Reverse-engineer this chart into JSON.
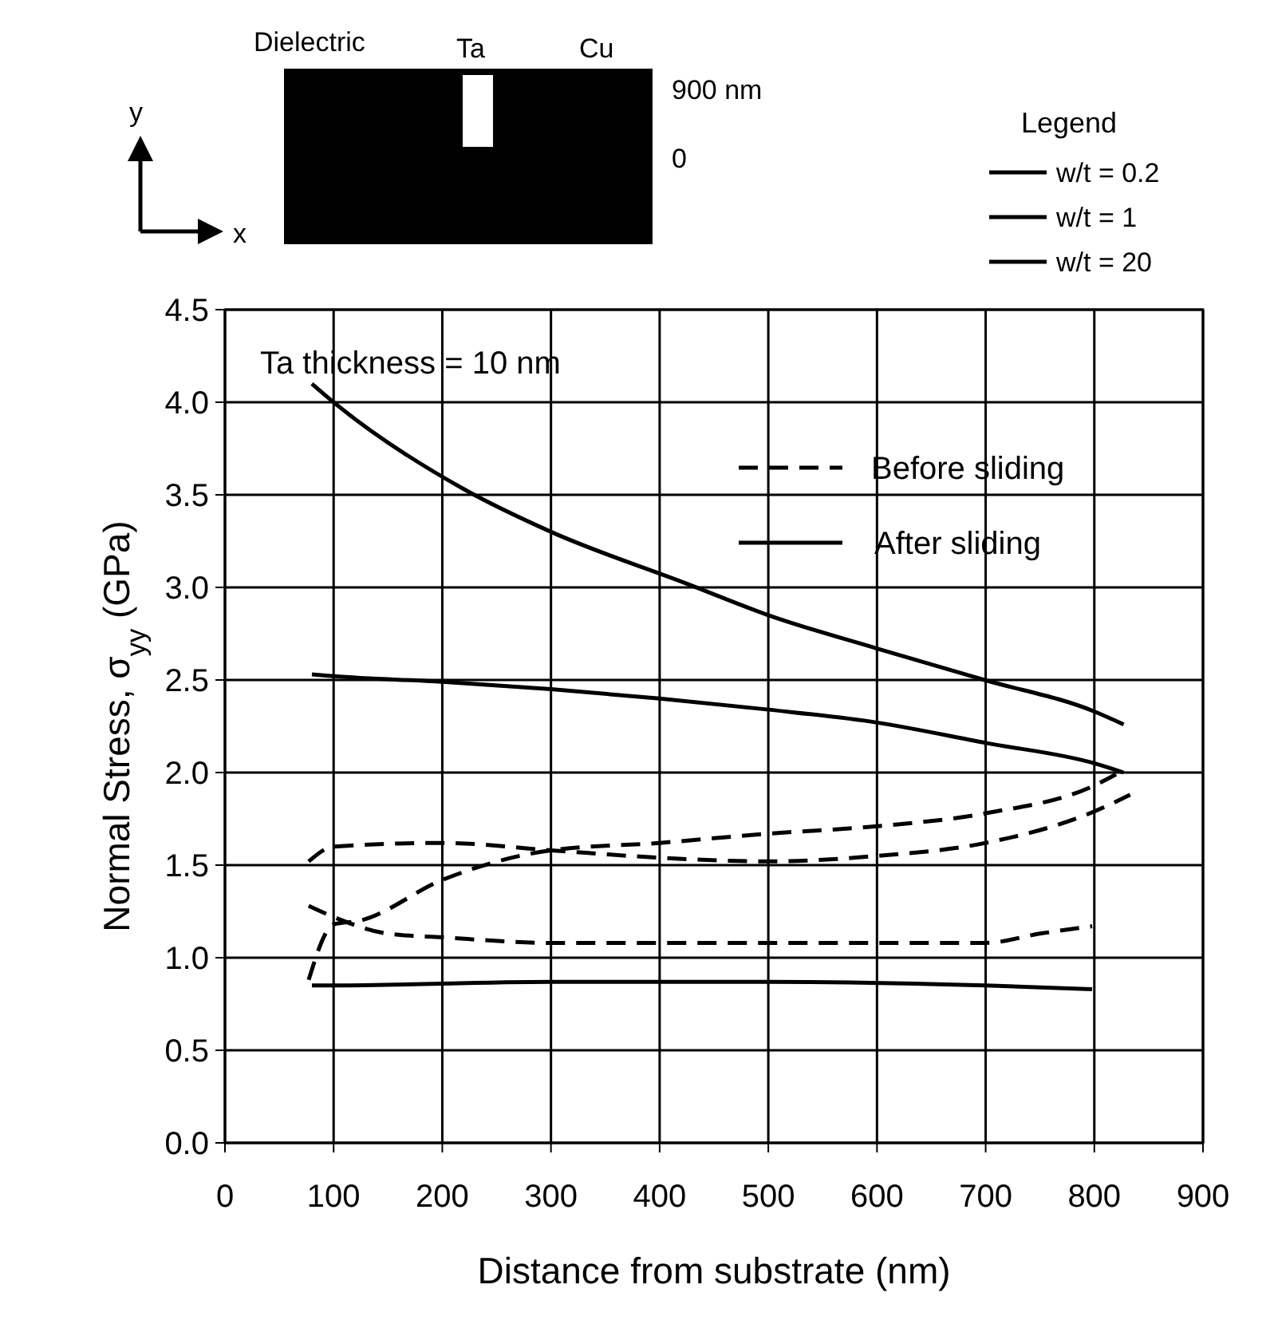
{
  "chart_data": {
    "type": "line",
    "xlabel": "Distance from substrate (nm)",
    "ylabel": "Normal Stress, σ$_{yy}$ (GPa)",
    "legend_title": "Legend",
    "legend": "top right",
    "grid": true,
    "xlim": [
      0,
      900
    ],
    "xticks": [
      0,
      100,
      200,
      300,
      400,
      500,
      600,
      700,
      800,
      900
    ],
    "ylim": [
      0,
      4.5
    ],
    "yticks": [
      {
        "value": 0,
        "label": "0.0"
      },
      {
        "value": 0.5,
        "label": "0.5"
      },
      {
        "value": 1,
        "label": "1.0"
      },
      {
        "value": 1.5,
        "label": "1.5"
      },
      {
        "value": 2,
        "label": "2.0"
      },
      {
        "value": 2.5,
        "label": "2.5"
      },
      {
        "value": 3,
        "label": "3.0"
      },
      {
        "value": 3.5,
        "label": "3.5"
      },
      {
        "value": 4,
        "label": "4.0"
      },
      {
        "value": 4.5,
        "label": "4.5"
      }
    ],
    "annotations": [
      "Ta thickness = 10 nm",
      "Before sliding",
      "After sliding",
      "Dielectric",
      "Ta",
      "Cu",
      "900 nm",
      "0",
      "y",
      "x"
    ],
    "series": [
      {
        "name": "w/t = 0.2",
        "color": "#000000",
        "line_style": "solid",
        "x": [
          80,
          100,
          220,
          300,
          425,
          500,
          600,
          699,
          800,
          827
        ],
        "values": [
          4.1,
          4.0,
          3.53,
          3.3,
          3.02,
          2.85,
          2.67,
          2.5,
          2.33,
          2.26
        ]
      },
      {
        "name": "w/t = 1",
        "color": "#000000",
        "line_style": "solid",
        "x": [
          80,
          100,
          200,
          300,
          400,
          500,
          600,
          700,
          800,
          827
        ],
        "values": [
          2.53,
          2.52,
          2.49,
          2.45,
          2.4,
          2.34,
          2.27,
          2.16,
          2.05,
          2.0
        ]
      },
      {
        "name": "w/t = 20",
        "color": "#000000",
        "line_style": "solid",
        "x": [
          80,
          100,
          300,
          500,
          700,
          798
        ],
        "values": [
          0.85,
          0.85,
          0.87,
          0.87,
          0.85,
          0.83
        ]
      },
      {
        "color": "#000000",
        "line_style": "dashed",
        "x": [
          77,
          100,
          200,
          300,
          400,
          500,
          600,
          700,
          800,
          833
        ],
        "values": [
          1.52,
          1.6,
          1.62,
          1.58,
          1.54,
          1.52,
          1.55,
          1.62,
          1.79,
          1.88
        ]
      },
      {
        "color": "#000000",
        "line_style": "dashed",
        "x": [
          77,
          100,
          124,
          200,
          300,
          400,
          500,
          600,
          700,
          800,
          820
        ],
        "values": [
          0.88,
          1.18,
          1.2,
          1.42,
          1.58,
          1.62,
          1.67,
          1.71,
          1.78,
          1.93,
          1.99
        ]
      },
      {
        "color": "#000000",
        "line_style": "dashed",
        "x": [
          77,
          100,
          150,
          200,
          300,
          400,
          500,
          600,
          700,
          750,
          798
        ],
        "values": [
          1.28,
          1.22,
          1.13,
          1.11,
          1.08,
          1.08,
          1.08,
          1.08,
          1.08,
          1.13,
          1.17
        ]
      }
    ]
  }
}
